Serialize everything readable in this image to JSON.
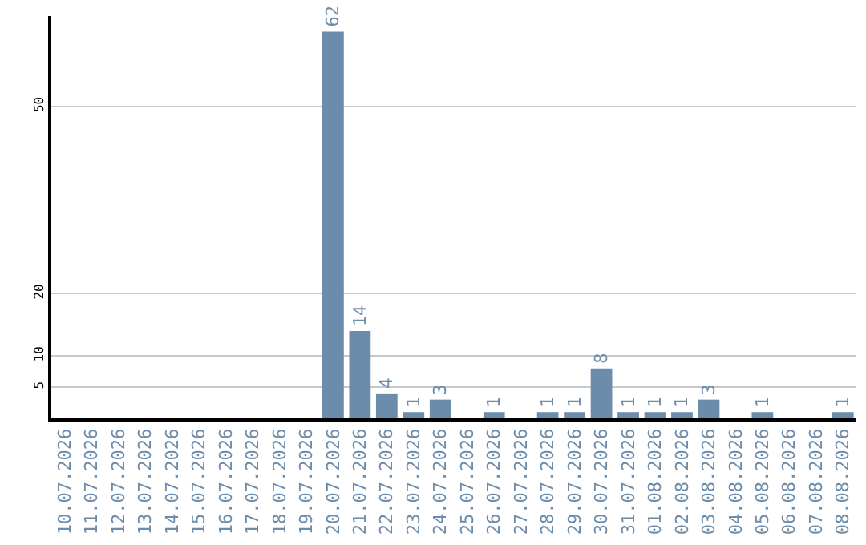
{
  "chart_data": {
    "type": "bar",
    "categories": [
      "10.07.2026",
      "11.07.2026",
      "12.07.2026",
      "13.07.2026",
      "14.07.2026",
      "15.07.2026",
      "16.07.2026",
      "17.07.2026",
      "18.07.2026",
      "19.07.2026",
      "20.07.2026",
      "21.07.2026",
      "22.07.2026",
      "23.07.2026",
      "24.07.2026",
      "25.07.2026",
      "26.07.2026",
      "27.07.2026",
      "28.07.2026",
      "29.07.2026",
      "30.07.2026",
      "31.07.2026",
      "01.08.2026",
      "02.08.2026",
      "03.08.2026",
      "04.08.2026",
      "05.08.2026",
      "06.08.2026",
      "07.08.2026",
      "08.08.2026"
    ],
    "values": [
      0,
      0,
      0,
      0,
      0,
      0,
      0,
      0,
      0,
      0,
      62,
      14,
      4,
      1,
      3,
      0,
      1,
      0,
      1,
      1,
      8,
      1,
      1,
      1,
      3,
      0,
      1,
      0,
      0,
      1
    ],
    "value_labels": [
      null,
      null,
      null,
      null,
      null,
      null,
      null,
      null,
      null,
      null,
      "62",
      "14",
      "4",
      "1",
      "3",
      null,
      "1",
      null,
      "1",
      "1",
      "8",
      "1",
      "1",
      "1",
      "3",
      null,
      "1",
      null,
      null,
      "1"
    ],
    "color": "#6b8cab",
    "ylim": [
      0,
      64.5
    ],
    "yticks": [
      5,
      10,
      20,
      50
    ],
    "grid": "y",
    "legend": false
  }
}
